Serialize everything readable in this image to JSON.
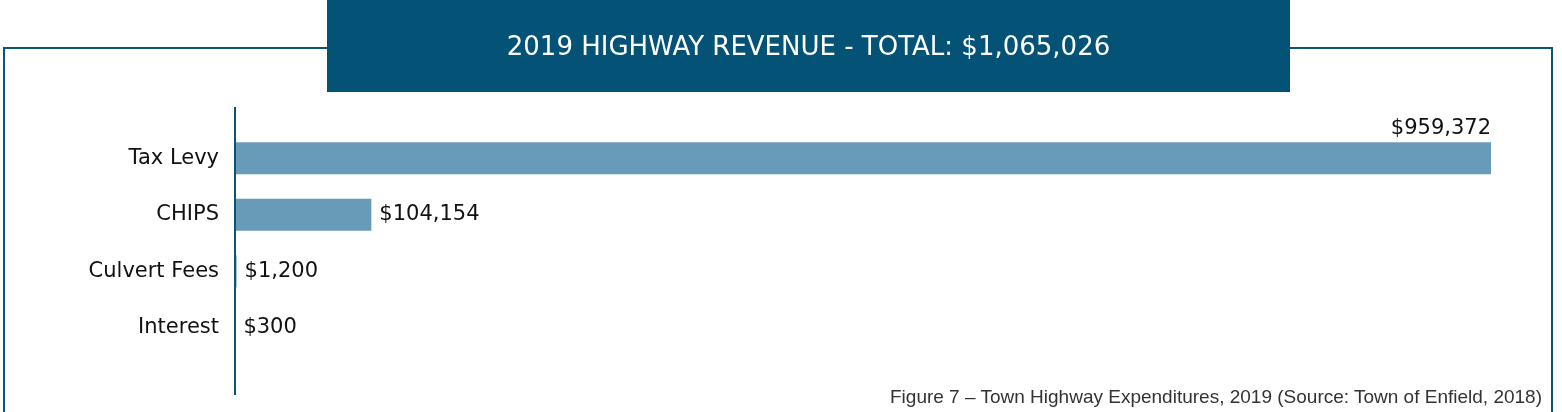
{
  "chart_data": {
    "type": "bar",
    "orientation": "horizontal",
    "title": "2019 HIGHWAY REVENUE - TOTAL: $1,065,026",
    "categories": [
      "Tax Levy",
      "CHIPS",
      "Culvert Fees",
      "Interest"
    ],
    "values": [
      959372,
      104154,
      1200,
      300
    ],
    "value_labels": [
      "$959,372",
      "$104,154",
      "$1,200",
      "$300"
    ],
    "color": "#689bb8",
    "annotations": [
      "Figure 7 – Town Highway Expenditures, 2019 (Source: Town of Enfield, 2018)"
    ]
  }
}
